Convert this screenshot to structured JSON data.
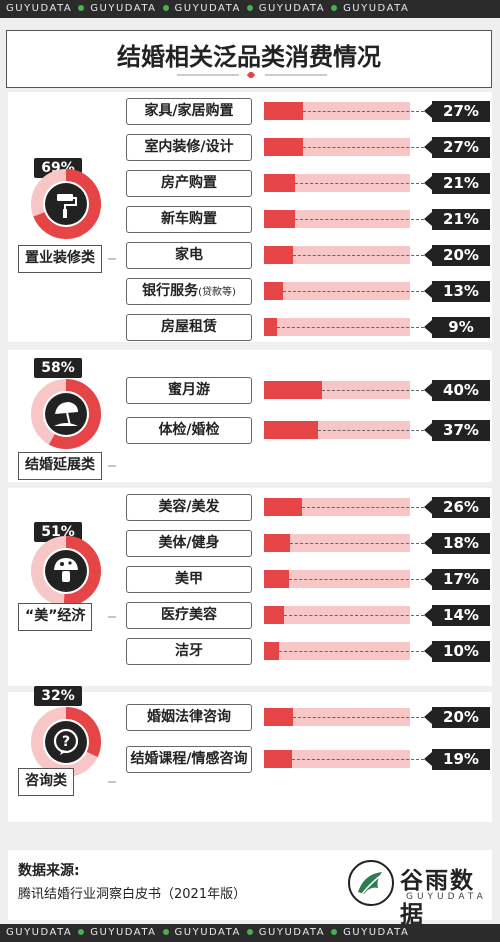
{
  "ticker": {
    "word": "GUYUDATA"
  },
  "title": "结婚相关泛品类消费情况",
  "accent_color": "#e54546",
  "track_color": "#f7c6c6",
  "groups": [
    {
      "name": "置业装修类",
      "share_label": "69%",
      "share": 69,
      "icon": "paint-roller-icon"
    },
    {
      "name": "结婚延展类",
      "share_label": "58%",
      "share": 58,
      "icon": "beach-umbrella-icon"
    },
    {
      "name": "“美”经济",
      "share_label": "51%",
      "share": 51,
      "icon": "mushroom-beauty-icon"
    },
    {
      "name": "咨询类",
      "share_label": "32%",
      "share": 32,
      "icon": "question-bubble-icon"
    }
  ],
  "rows": [
    {
      "label": "家具/家居购置",
      "note": "",
      "value_label": "27%"
    },
    {
      "label": "室内装修/设计",
      "note": "",
      "value_label": "27%"
    },
    {
      "label": "房产购置",
      "note": "",
      "value_label": "21%"
    },
    {
      "label": "新车购置",
      "note": "",
      "value_label": "21%"
    },
    {
      "label": "家电",
      "note": "",
      "value_label": "20%"
    },
    {
      "label": "银行服务",
      "note": "(贷款等)",
      "value_label": "13%"
    },
    {
      "label": "房屋租赁",
      "note": "",
      "value_label": "9%"
    },
    {
      "label": "蜜月游",
      "note": "",
      "value_label": "40%"
    },
    {
      "label": "体检/婚检",
      "note": "",
      "value_label": "37%"
    },
    {
      "label": "美容/美发",
      "note": "",
      "value_label": "26%"
    },
    {
      "label": "美体/健身",
      "note": "",
      "value_label": "18%"
    },
    {
      "label": "美甲",
      "note": "",
      "value_label": "17%"
    },
    {
      "label": "医疗美容",
      "note": "",
      "value_label": "14%"
    },
    {
      "label": "洁牙",
      "note": "",
      "value_label": "10%"
    },
    {
      "label": "婚姻法律咨询",
      "note": "",
      "value_label": "20%"
    },
    {
      "label": "结婚课程/情感咨询",
      "note": "",
      "value_label": "19%"
    }
  ],
  "chart_data": {
    "type": "bar",
    "title": "结婚相关泛品类消费情况",
    "categories": [
      "家具/家居购置",
      "室内装修/设计",
      "房产购置",
      "新车购置",
      "家电",
      "银行服务(贷款等)",
      "房屋租赁",
      "蜜月游",
      "体检/婚检",
      "美容/美发",
      "美体/健身",
      "美甲",
      "医疗美容",
      "洁牙",
      "婚姻法律咨询",
      "结婚课程/情感咨询"
    ],
    "values": [
      27,
      27,
      21,
      21,
      20,
      13,
      9,
      40,
      37,
      26,
      18,
      17,
      14,
      10,
      20,
      19
    ],
    "groups": [
      {
        "name": "置业装修类",
        "value": 69,
        "members": [
          "家具/家居购置",
          "室内装修/设计",
          "房产购置",
          "新车购置",
          "家电",
          "银行服务(贷款等)",
          "房屋租赁"
        ]
      },
      {
        "name": "结婚延展类",
        "value": 58,
        "members": [
          "蜜月游",
          "体检/婚检"
        ]
      },
      {
        "name": "“美”经济",
        "value": 51,
        "members": [
          "美容/美发",
          "美体/健身",
          "美甲",
          "医疗美容",
          "洁牙"
        ]
      },
      {
        "name": "咨询类",
        "value": 32,
        "members": [
          "婚姻法律咨询",
          "结婚课程/情感咨询"
        ]
      }
    ],
    "unit": "%",
    "xlim": [
      0,
      100
    ],
    "grid": false
  },
  "footer": {
    "source_title": "数据来源:",
    "source_text": "腾讯结婚行业洞察白皮书（2021年版）",
    "brand": "谷雨数据",
    "brand_sub": "GUYUDATA"
  }
}
